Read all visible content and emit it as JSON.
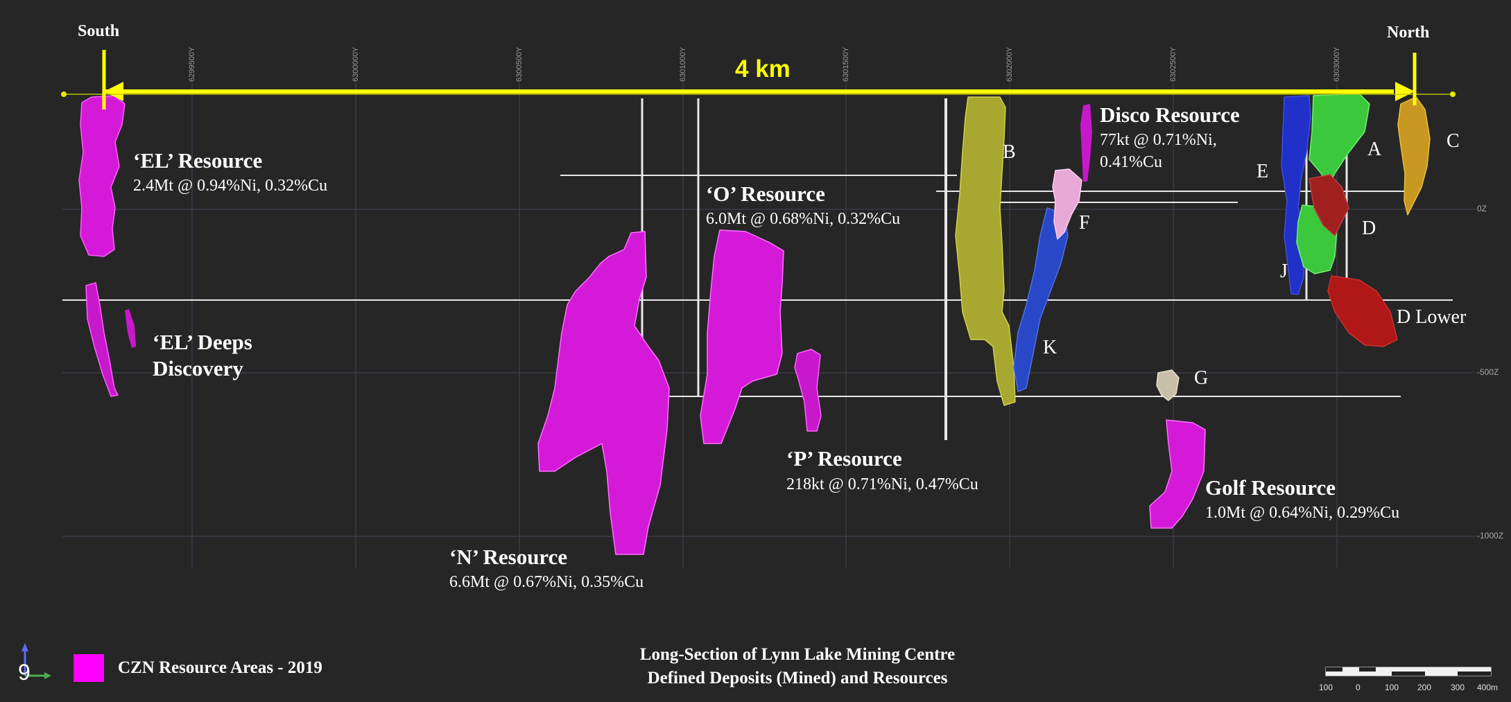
{
  "directions": {
    "south": "South",
    "north": "North"
  },
  "distance_label": "4 km",
  "northing_ticks": [
    "6299500Y",
    "6300000Y",
    "6300500Y",
    "6301000Y",
    "6301500Y",
    "6302000Y",
    "6302500Y",
    "6303000Y"
  ],
  "elevation_ticks": [
    "0Z",
    "-500Z",
    "-1000Z"
  ],
  "resources": {
    "el": {
      "title": "‘EL’ Resource",
      "grade": "2.4Mt @ 0.94%Ni, 0.32%Cu"
    },
    "el_deeps": {
      "title_line1": "‘EL’ Deeps",
      "title_line2": "Discovery"
    },
    "o": {
      "title": "‘O’ Resource",
      "grade": "6.0Mt @ 0.68%Ni, 0.32%Cu"
    },
    "p": {
      "title": "‘P’ Resource",
      "grade": "218kt @ 0.71%Ni, 0.47%Cu"
    },
    "n": {
      "title": "‘N’ Resource",
      "grade": "6.6Mt @ 0.67%Ni, 0.35%Cu"
    },
    "disco": {
      "title": "Disco Resource",
      "grade_line1": "77kt @ 0.71%Ni,",
      "grade_line2": "0.41%Cu"
    },
    "golf": {
      "title": "Golf Resource",
      "grade": "1.0Mt @ 0.64%Ni, 0.29%Cu"
    }
  },
  "deposit_labels": {
    "a": "A",
    "b": "B",
    "c": "C",
    "d": "D",
    "d_lower": "D Lower",
    "e": "E",
    "f": "F",
    "g": "G",
    "j": "J",
    "k": "K"
  },
  "legend": {
    "label": "CZN Resource Areas - 2019",
    "color": "#ff00ff"
  },
  "footer": {
    "line1": "Long-Section of Lynn Lake Mining Centre",
    "line2": "Defined Deposits (Mined) and Resources"
  },
  "scale_bar": {
    "ticks": [
      "100",
      "0",
      "100",
      "200",
      "300",
      "400m"
    ]
  },
  "axis_icon": {
    "label": "9"
  },
  "colors": {
    "magenta": "#e01ee8",
    "yellow_arrow": "#ffff00",
    "olive": "#a8a830",
    "blue": "#2040c8",
    "green": "#30c030",
    "red": "#b01818",
    "gold": "#c89820",
    "pink": "#e8a8d8",
    "grey_ore": "#c8c0a8"
  }
}
